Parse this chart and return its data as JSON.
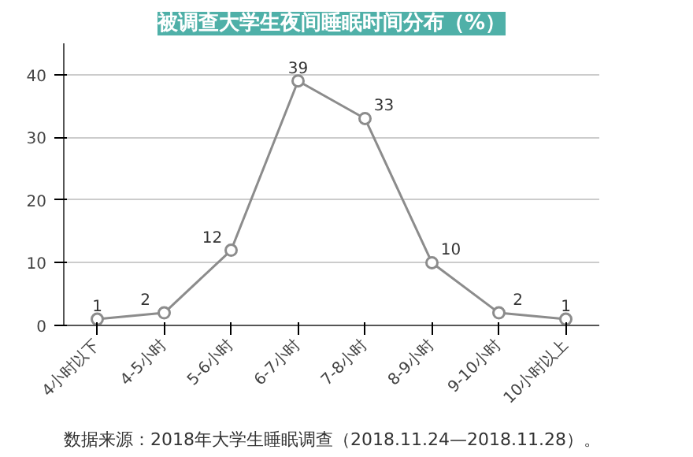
{
  "chart_data": {
    "type": "line",
    "title": "被调查大学生夜间睡眠时间分布（%）",
    "categories": [
      "4小时以下",
      "4-5小时",
      "5-6小时",
      "6-7小时",
      "7-8小时",
      "8-9小时",
      "9-10小时",
      "10小时以上"
    ],
    "series": [
      {
        "color": "#8c8c8c",
        "values": [
          1,
          2,
          12,
          39,
          33,
          10,
          2,
          1
        ]
      }
    ],
    "ylim": [
      0,
      45
    ],
    "yticks": [
      0,
      10,
      20,
      30,
      40
    ],
    "grid": "y",
    "marker": "circle",
    "line_style": "solid",
    "data_labels": true,
    "annotations": [
      "数据来源：2018年大学生睡眠调查（2018.11.24—2018.11.28）。"
    ]
  }
}
